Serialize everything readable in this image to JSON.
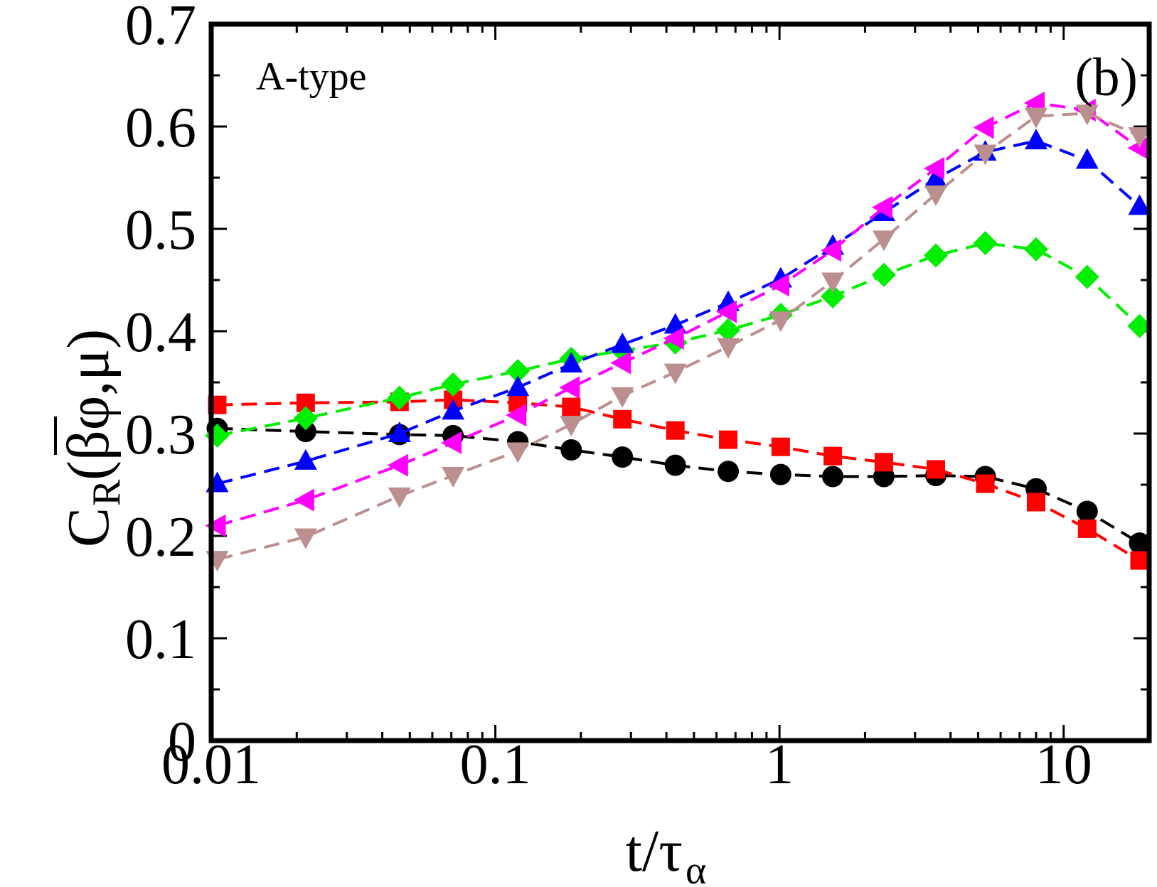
{
  "chart_data": {
    "type": "line",
    "panel_label": "(b)",
    "annotation": "A-type",
    "xlabel_main": "t/τ",
    "xlabel_sub": "α",
    "ylabel_main": "C",
    "ylabel_sub": "R",
    "ylabel_args": "(βφ,μ)",
    "xscale": "log",
    "xlim": [
      0.01,
      20
    ],
    "ylim": [
      0,
      0.7
    ],
    "x_ticks": [
      0.01,
      0.1,
      1,
      10
    ],
    "x_tick_labels": [
      "0.01",
      "0.1",
      "1",
      "10"
    ],
    "y_ticks": [
      0,
      0.1,
      0.2,
      0.3,
      0.4,
      0.5,
      0.6,
      0.7
    ],
    "y_tick_labels": [
      "0",
      "0.1",
      "0.2",
      "0.3",
      "0.4",
      "0.5",
      "0.6",
      "0.7"
    ],
    "x": [
      0.0105,
      0.0215,
      0.046,
      0.071,
      0.12,
      0.185,
      0.28,
      0.43,
      0.66,
      1.01,
      1.54,
      2.33,
      3.55,
      5.3,
      8.0,
      12.1,
      18.5
    ],
    "series": [
      {
        "marker": "circle",
        "color": "#000000",
        "values": [
          0.305,
          0.302,
          0.299,
          0.298,
          0.292,
          0.284,
          0.277,
          0.269,
          0.263,
          0.26,
          0.258,
          0.258,
          0.259,
          0.258,
          0.246,
          0.224,
          0.193
        ]
      },
      {
        "marker": "square",
        "color": "#ff0000",
        "values": [
          0.328,
          0.33,
          0.331,
          0.333,
          0.33,
          0.326,
          0.314,
          0.303,
          0.294,
          0.287,
          0.278,
          0.272,
          0.265,
          0.251,
          0.233,
          0.207,
          0.176
        ]
      },
      {
        "marker": "diamond",
        "color": "#00ee00",
        "values": [
          0.298,
          0.315,
          0.335,
          0.348,
          0.361,
          0.373,
          0.381,
          0.389,
          0.401,
          0.416,
          0.434,
          0.455,
          0.474,
          0.486,
          0.48,
          0.453,
          0.405
        ]
      },
      {
        "marker": "triangle-up",
        "color": "#0000ff",
        "values": [
          0.251,
          0.273,
          0.3,
          0.322,
          0.345,
          0.368,
          0.387,
          0.406,
          0.428,
          0.451,
          0.483,
          0.516,
          0.549,
          0.575,
          0.586,
          0.567,
          0.522
        ]
      },
      {
        "marker": "triangle-left",
        "color": "#ff00ff",
        "values": [
          0.21,
          0.235,
          0.269,
          0.291,
          0.318,
          0.345,
          0.369,
          0.393,
          0.419,
          0.445,
          0.479,
          0.521,
          0.559,
          0.599,
          0.623,
          0.616,
          0.579
        ]
      },
      {
        "marker": "triangle-down",
        "color": "#bc8f8f",
        "values": [
          0.177,
          0.199,
          0.239,
          0.259,
          0.283,
          0.309,
          0.337,
          0.36,
          0.385,
          0.411,
          0.449,
          0.49,
          0.534,
          0.574,
          0.61,
          0.613,
          0.591
        ]
      }
    ]
  }
}
